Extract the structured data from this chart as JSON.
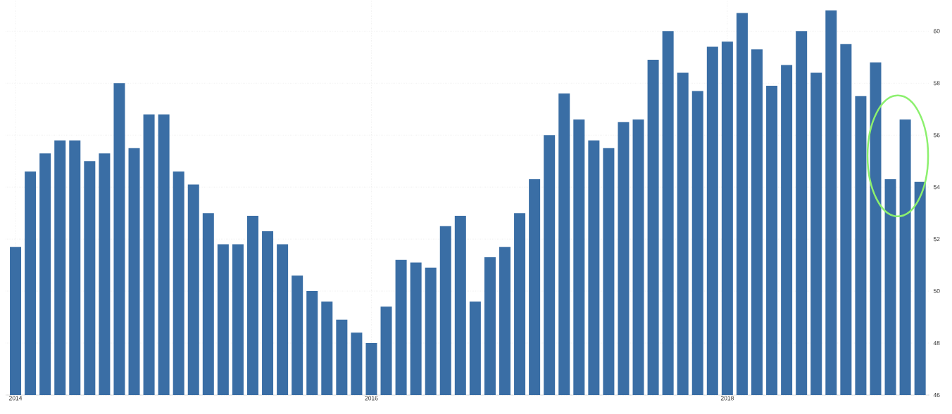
{
  "chart_data": {
    "type": "bar",
    "color": "#3a6ea5",
    "x": [
      "2014-01",
      "2014-02",
      "2014-03",
      "2014-04",
      "2014-05",
      "2014-06",
      "2014-07",
      "2014-08",
      "2014-09",
      "2014-10",
      "2014-11",
      "2014-12",
      "2015-01",
      "2015-02",
      "2015-03",
      "2015-04",
      "2015-05",
      "2015-06",
      "2015-07",
      "2015-08",
      "2015-09",
      "2015-10",
      "2015-11",
      "2015-12",
      "2016-01",
      "2016-02",
      "2016-03",
      "2016-04",
      "2016-05",
      "2016-06",
      "2016-07",
      "2016-08",
      "2016-09",
      "2016-10",
      "2016-11",
      "2016-12",
      "2017-01",
      "2017-02",
      "2017-03",
      "2017-04",
      "2017-05",
      "2017-06",
      "2017-07",
      "2017-08",
      "2017-09",
      "2017-10",
      "2017-11",
      "2017-12",
      "2018-01",
      "2018-02",
      "2018-03",
      "2018-04",
      "2018-05",
      "2018-06",
      "2018-07",
      "2018-08",
      "2018-09",
      "2018-10",
      "2018-11",
      "2018-12",
      "2019-01",
      "2019-02"
    ],
    "values": [
      51.7,
      54.6,
      55.3,
      55.8,
      55.8,
      55.0,
      55.3,
      58.0,
      55.5,
      56.8,
      56.8,
      54.6,
      54.1,
      53.0,
      51.8,
      51.8,
      52.9,
      52.3,
      51.8,
      50.6,
      50.0,
      49.6,
      48.9,
      48.4,
      48.0,
      49.4,
      51.2,
      51.1,
      50.9,
      52.5,
      52.9,
      49.6,
      51.3,
      51.7,
      53.0,
      54.3,
      56.0,
      57.6,
      56.6,
      55.8,
      55.5,
      56.5,
      56.6,
      58.9,
      60.0,
      58.4,
      57.7,
      59.4,
      59.6,
      60.7,
      59.3,
      57.9,
      58.7,
      60.0,
      58.4,
      60.8,
      59.5,
      57.5,
      58.8,
      54.3,
      56.6,
      54.2
    ],
    "xlim": [
      "2013-12-11",
      "2019-02-20"
    ],
    "xticks": [
      "2014",
      "2016",
      "2018"
    ],
    "ylim": [
      46,
      61.2
    ],
    "yticks": [
      46,
      48,
      50,
      52,
      54,
      56,
      58,
      60
    ],
    "grid": true
  }
}
